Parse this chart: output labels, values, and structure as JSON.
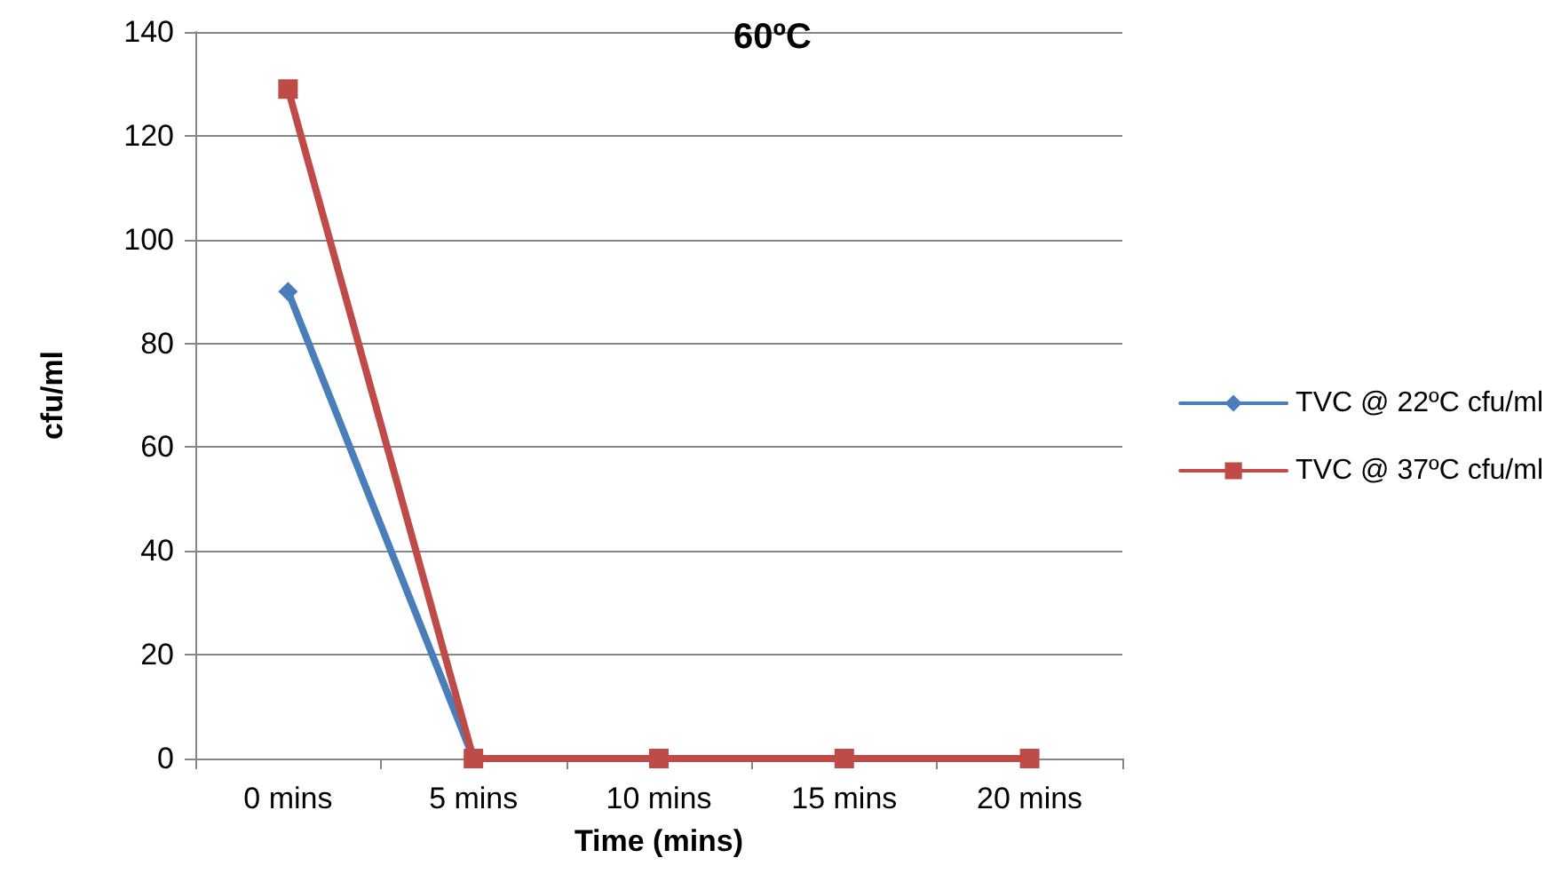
{
  "chart_data": {
    "type": "line",
    "title": "60ºC",
    "xlabel": "Time (mins)",
    "ylabel": "cfu/ml",
    "categories": [
      "0 mins",
      "5 mins",
      "10 mins",
      "15 mins",
      "20 mins"
    ],
    "series": [
      {
        "name": "TVC @ 22ºC cfu/ml",
        "color": "#4a7ebb",
        "marker": "diamond",
        "values": [
          90,
          0,
          null,
          null,
          null
        ]
      },
      {
        "name": "TVC @ 37ºC cfu/ml",
        "color": "#be4b48",
        "marker": "square",
        "values": [
          129,
          0,
          0,
          0,
          0
        ]
      }
    ],
    "ylim": [
      0,
      140
    ],
    "yticks": [
      0,
      20,
      40,
      60,
      80,
      100,
      120,
      140
    ],
    "grid": "y",
    "legend": "right"
  }
}
